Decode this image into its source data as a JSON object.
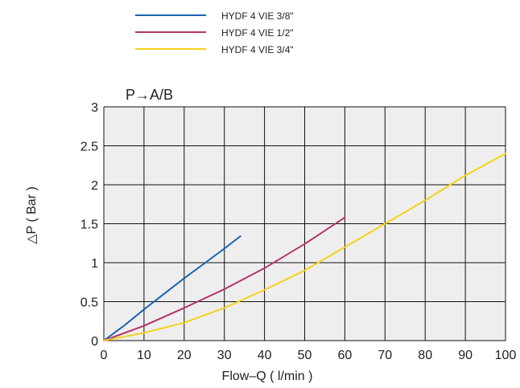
{
  "chart_data": {
    "type": "line",
    "title": "P→A/B",
    "xlabel": "Flow–Q ( l/min )",
    "ylabel": "△P ( Bar )",
    "xlim": [
      0,
      100
    ],
    "ylim": [
      0,
      3
    ],
    "x_ticks": [
      "0",
      "10",
      "20",
      "30",
      "40",
      "50",
      "60",
      "70",
      "80",
      "90",
      "100"
    ],
    "y_ticks": [
      "0",
      "0.5",
      "1",
      "1.5",
      "2",
      "2.5",
      "3"
    ],
    "grid": true,
    "legend_position": "top",
    "series": [
      {
        "name": "HYDF 4 VIE 3/8\"",
        "color": "#1a63b0",
        "points": [
          [
            0,
            0
          ],
          [
            5,
            0.19
          ],
          [
            10,
            0.4
          ],
          [
            15,
            0.6
          ],
          [
            20,
            0.8
          ],
          [
            25,
            0.99
          ],
          [
            30,
            1.18
          ],
          [
            34,
            1.34
          ]
        ]
      },
      {
        "name": "HYDF 4 VIE 1/2\"",
        "color": "#b5336b",
        "points": [
          [
            0,
            0
          ],
          [
            10,
            0.19
          ],
          [
            20,
            0.42
          ],
          [
            30,
            0.66
          ],
          [
            40,
            0.93
          ],
          [
            50,
            1.24
          ],
          [
            55,
            1.41
          ],
          [
            60,
            1.58
          ]
        ]
      },
      {
        "name": "HYDF 4 VIE 3/4\"",
        "color": "#f5d21a",
        "points": [
          [
            0,
            0
          ],
          [
            10,
            0.1
          ],
          [
            20,
            0.23
          ],
          [
            30,
            0.42
          ],
          [
            40,
            0.65
          ],
          [
            50,
            0.9
          ],
          [
            60,
            1.2
          ],
          [
            70,
            1.5
          ],
          [
            80,
            1.8
          ],
          [
            90,
            2.12
          ],
          [
            100,
            2.4
          ]
        ]
      }
    ]
  }
}
